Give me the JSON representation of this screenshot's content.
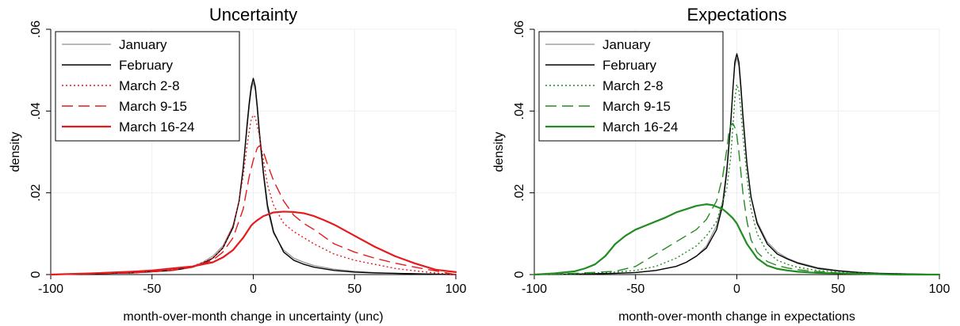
{
  "chart_data": [
    {
      "type": "line",
      "title": "Uncertainty",
      "xlabel": "month-over-month change in uncertainty (unc)",
      "ylabel": "density",
      "xlim": [
        -100,
        100
      ],
      "ylim": [
        0,
        0.06
      ],
      "xticks": [
        -100,
        -50,
        0,
        50,
        100
      ],
      "yticks": [
        0,
        0.02,
        0.04,
        0.06
      ],
      "xtick_labels": [
        "-100",
        "-50",
        "0",
        "50",
        "100"
      ],
      "ytick_labels": [
        "0",
        ".02",
        ".04",
        ".06"
      ],
      "grid": true,
      "legend_position": "top-left",
      "series": [
        {
          "name": "January",
          "color": "#909090",
          "dash": "solid",
          "width": 1.2,
          "x": [
            -100,
            -80,
            -60,
            -50,
            -40,
            -30,
            -25,
            -20,
            -15,
            -10,
            -7,
            -5,
            -3,
            -2,
            -1,
            0,
            1,
            2,
            3,
            5,
            7,
            10,
            15,
            20,
            25,
            30,
            40,
            50,
            60,
            70,
            80,
            90,
            100
          ],
          "y": [
            0,
            0.0002,
            0.0005,
            0.0008,
            0.0012,
            0.002,
            0.003,
            0.0045,
            0.007,
            0.012,
            0.018,
            0.026,
            0.036,
            0.041,
            0.045,
            0.047,
            0.045,
            0.04,
            0.034,
            0.024,
            0.016,
            0.01,
            0.006,
            0.004,
            0.003,
            0.0022,
            0.0013,
            0.0008,
            0.0005,
            0.0003,
            0.0002,
            0.0001,
            0
          ]
        },
        {
          "name": "February",
          "color": "#000000",
          "dash": "solid",
          "width": 1.4,
          "x": [
            -100,
            -80,
            -60,
            -50,
            -40,
            -30,
            -25,
            -20,
            -15,
            -10,
            -7,
            -5,
            -3,
            -2,
            -1,
            0,
            1,
            2,
            3,
            5,
            7,
            10,
            15,
            20,
            25,
            30,
            40,
            50,
            60,
            70,
            80,
            90,
            100
          ],
          "y": [
            0,
            0.0002,
            0.0004,
            0.0007,
            0.001,
            0.0018,
            0.0027,
            0.004,
            0.0065,
            0.0115,
            0.018,
            0.026,
            0.037,
            0.042,
            0.046,
            0.048,
            0.046,
            0.041,
            0.035,
            0.025,
            0.017,
            0.0105,
            0.0055,
            0.0035,
            0.0025,
            0.0018,
            0.001,
            0.0006,
            0.0004,
            0.0003,
            0.0002,
            0.0001,
            0
          ]
        },
        {
          "name": "March 2-8",
          "color": "#e41a1c",
          "dash": "2,3",
          "width": 1.4,
          "x": [
            -100,
            -80,
            -60,
            -50,
            -40,
            -30,
            -20,
            -15,
            -10,
            -7,
            -5,
            -3,
            -1,
            0,
            1,
            3,
            5,
            7,
            10,
            15,
            20,
            25,
            30,
            40,
            50,
            60,
            70,
            80,
            90,
            100
          ],
          "y": [
            0,
            0.0002,
            0.0005,
            0.0008,
            0.0012,
            0.002,
            0.004,
            0.0065,
            0.012,
            0.018,
            0.024,
            0.032,
            0.038,
            0.039,
            0.0385,
            0.034,
            0.028,
            0.022,
            0.017,
            0.0125,
            0.0105,
            0.009,
            0.0075,
            0.005,
            0.0035,
            0.0025,
            0.0015,
            0.0009,
            0.0004,
            0
          ]
        },
        {
          "name": "March 9-15",
          "color": "#e41a1c",
          "dash": "14,7",
          "width": 1.4,
          "x": [
            -100,
            -80,
            -60,
            -50,
            -40,
            -30,
            -20,
            -15,
            -10,
            -5,
            -2,
            0,
            2,
            3,
            4,
            5,
            7,
            10,
            15,
            20,
            25,
            30,
            40,
            50,
            60,
            70,
            80,
            90,
            100
          ],
          "y": [
            0,
            0.0002,
            0.0004,
            0.0007,
            0.001,
            0.0018,
            0.0035,
            0.0055,
            0.009,
            0.016,
            0.024,
            0.028,
            0.031,
            0.0315,
            0.031,
            0.03,
            0.027,
            0.023,
            0.018,
            0.0145,
            0.0125,
            0.011,
            0.0075,
            0.0055,
            0.004,
            0.0028,
            0.0018,
            0.0009,
            0
          ]
        },
        {
          "name": "March 16-24",
          "color": "#e41a1c",
          "dash": "solid",
          "width": 2.2,
          "x": [
            -100,
            -80,
            -60,
            -50,
            -40,
            -30,
            -20,
            -15,
            -10,
            -7,
            -5,
            -3,
            -1,
            0,
            2,
            5,
            10,
            15,
            20,
            25,
            30,
            35,
            40,
            50,
            60,
            70,
            80,
            90,
            100
          ],
          "y": [
            0,
            0.0003,
            0.0007,
            0.001,
            0.0015,
            0.002,
            0.003,
            0.0042,
            0.006,
            0.0078,
            0.009,
            0.0105,
            0.012,
            0.0125,
            0.0133,
            0.0143,
            0.0152,
            0.0154,
            0.0153,
            0.015,
            0.0143,
            0.0133,
            0.0122,
            0.0095,
            0.0068,
            0.0045,
            0.0027,
            0.0012,
            0.0006
          ]
        }
      ]
    },
    {
      "type": "line",
      "title": "Expectations",
      "xlabel": "month-over-month change in expectations",
      "ylabel": "density",
      "xlim": [
        -100,
        100
      ],
      "ylim": [
        0,
        0.06
      ],
      "xticks": [
        -100,
        -50,
        0,
        50,
        100
      ],
      "yticks": [
        0,
        0.02,
        0.04,
        0.06
      ],
      "xtick_labels": [
        "-100",
        "-50",
        "0",
        "50",
        "100"
      ],
      "ytick_labels": [
        "0",
        ".02",
        ".04",
        ".06"
      ],
      "grid": true,
      "legend_position": "top-left",
      "series": [
        {
          "name": "January",
          "color": "#909090",
          "dash": "solid",
          "width": 1.2,
          "x": [
            -100,
            -80,
            -60,
            -50,
            -40,
            -30,
            -25,
            -20,
            -15,
            -10,
            -7,
            -5,
            -3,
            -2,
            -1,
            0,
            1,
            2,
            3,
            5,
            7,
            10,
            15,
            20,
            25,
            30,
            40,
            50,
            60,
            70,
            80,
            90,
            100
          ],
          "y": [
            0,
            0.0001,
            0.0003,
            0.0005,
            0.001,
            0.002,
            0.003,
            0.0045,
            0.007,
            0.012,
            0.018,
            0.026,
            0.038,
            0.045,
            0.051,
            0.053,
            0.051,
            0.045,
            0.038,
            0.027,
            0.019,
            0.013,
            0.008,
            0.0055,
            0.004,
            0.003,
            0.0017,
            0.001,
            0.0006,
            0.0003,
            0.0002,
            0.0001,
            0
          ]
        },
        {
          "name": "February",
          "color": "#000000",
          "dash": "solid",
          "width": 1.4,
          "x": [
            -100,
            -80,
            -60,
            -50,
            -40,
            -30,
            -25,
            -20,
            -15,
            -10,
            -7,
            -5,
            -3,
            -2,
            -1,
            0,
            1,
            2,
            3,
            5,
            7,
            10,
            15,
            20,
            25,
            30,
            40,
            50,
            60,
            70,
            80,
            90,
            100
          ],
          "y": [
            0,
            0.0001,
            0.0003,
            0.0005,
            0.001,
            0.002,
            0.003,
            0.0045,
            0.0065,
            0.011,
            0.017,
            0.025,
            0.037,
            0.045,
            0.052,
            0.054,
            0.052,
            0.046,
            0.039,
            0.027,
            0.019,
            0.0125,
            0.0075,
            0.005,
            0.0038,
            0.0028,
            0.0015,
            0.0009,
            0.0005,
            0.0003,
            0.0002,
            0.0001,
            0
          ]
        },
        {
          "name": "March 2-8",
          "color": "#228b22",
          "dash": "2,3",
          "width": 1.4,
          "x": [
            -100,
            -80,
            -60,
            -50,
            -40,
            -30,
            -20,
            -15,
            -10,
            -5,
            -3,
            -2,
            -1,
            0,
            1,
            2,
            3,
            5,
            7,
            10,
            15,
            20,
            25,
            30,
            40,
            50,
            60,
            70,
            80,
            90,
            100
          ],
          "y": [
            0,
            0.0002,
            0.0006,
            0.001,
            0.002,
            0.004,
            0.007,
            0.0095,
            0.013,
            0.021,
            0.029,
            0.036,
            0.043,
            0.0465,
            0.045,
            0.04,
            0.034,
            0.024,
            0.016,
            0.01,
            0.0055,
            0.0035,
            0.0025,
            0.0018,
            0.001,
            0.0006,
            0.0004,
            0.0002,
            0.0001,
            0,
            0
          ]
        },
        {
          "name": "March 9-15",
          "color": "#228b22",
          "dash": "14,7",
          "width": 1.4,
          "x": [
            -100,
            -80,
            -60,
            -50,
            -40,
            -30,
            -25,
            -20,
            -15,
            -10,
            -7,
            -5,
            -4,
            -3,
            -2,
            -1,
            0,
            1,
            2,
            3,
            5,
            7,
            10,
            15,
            20,
            25,
            30,
            40,
            50,
            60,
            70,
            80,
            90,
            100
          ],
          "y": [
            0,
            0.0003,
            0.0008,
            0.002,
            0.005,
            0.008,
            0.0095,
            0.011,
            0.0135,
            0.018,
            0.024,
            0.0305,
            0.0345,
            0.0365,
            0.037,
            0.036,
            0.034,
            0.03,
            0.025,
            0.02,
            0.013,
            0.0085,
            0.0055,
            0.0032,
            0.0022,
            0.0016,
            0.0012,
            0.0007,
            0.0004,
            0.0002,
            0.0001,
            0,
            0,
            0
          ]
        },
        {
          "name": "March 16-24",
          "color": "#228b22",
          "dash": "solid",
          "width": 2.2,
          "x": [
            -100,
            -90,
            -80,
            -75,
            -70,
            -65,
            -60,
            -55,
            -50,
            -45,
            -40,
            -35,
            -30,
            -25,
            -20,
            -15,
            -12,
            -10,
            -7,
            -5,
            -2,
            0,
            2,
            5,
            10,
            15,
            20,
            25,
            30,
            40,
            50,
            60,
            70,
            80,
            90,
            100
          ],
          "y": [
            0,
            0.0003,
            0.0008,
            0.0015,
            0.0025,
            0.0045,
            0.0075,
            0.0095,
            0.011,
            0.012,
            0.013,
            0.014,
            0.0152,
            0.016,
            0.0168,
            0.0172,
            0.017,
            0.0166,
            0.016,
            0.0152,
            0.0138,
            0.0125,
            0.0105,
            0.0075,
            0.004,
            0.0022,
            0.0014,
            0.001,
            0.0007,
            0.0004,
            0.0003,
            0.0002,
            0.0001,
            0,
            0,
            0
          ]
        }
      ]
    }
  ]
}
